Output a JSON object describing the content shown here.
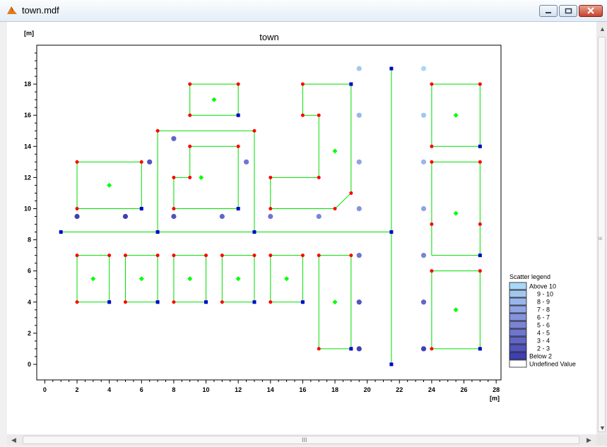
{
  "window": {
    "title": "town.mdf",
    "icon": "matlab-peak-icon",
    "controls": [
      "minimize-icon",
      "maximize-icon",
      "close-icon"
    ],
    "colors": {
      "close": "#c8402b",
      "titlebar": "#e4edf7"
    }
  },
  "plot": {
    "title": "town",
    "ylabel": "[m]",
    "xlabel": "[m]"
  },
  "scrollbars": {
    "h_grip": "III",
    "v_grip": "III"
  },
  "chart_data": {
    "type": "scatter",
    "title": "town",
    "xlabel": "[m]",
    "ylabel": "[m]",
    "xlim": [
      -0.5,
      28.3
    ],
    "ylim": [
      -1,
      20.5
    ],
    "xticks": [
      0,
      2,
      4,
      6,
      8,
      10,
      12,
      14,
      16,
      18,
      20,
      22,
      24,
      26,
      28
    ],
    "yticks": [
      0,
      2,
      4,
      6,
      8,
      10,
      12,
      14,
      16,
      18
    ],
    "grid": false,
    "colors": {
      "lines": "#00dd00",
      "red_nodes": "#ff0000",
      "blue_nodes": "#0000cc",
      "green_markers": "#00ff00"
    },
    "polylines": [
      [
        [
          2,
          10
        ],
        [
          2,
          13
        ],
        [
          6,
          13
        ],
        [
          6,
          10
        ],
        [
          2,
          10
        ]
      ],
      [
        [
          9,
          16
        ],
        [
          9,
          18
        ],
        [
          12,
          18
        ],
        [
          12,
          16
        ],
        [
          9,
          16
        ]
      ],
      [
        [
          7,
          8.5
        ],
        [
          7,
          15
        ],
        [
          13,
          15
        ],
        [
          13,
          8.5
        ]
      ],
      [
        [
          8,
          10
        ],
        [
          8,
          12
        ],
        [
          9,
          12
        ],
        [
          9,
          14
        ],
        [
          12,
          14
        ],
        [
          12,
          10
        ],
        [
          8,
          10
        ]
      ],
      [
        [
          16,
          16
        ],
        [
          16,
          18
        ],
        [
          19,
          18
        ],
        [
          19,
          11
        ],
        [
          18,
          10
        ],
        [
          14,
          10
        ],
        [
          14,
          12
        ],
        [
          17,
          12
        ],
        [
          17,
          16
        ],
        [
          16,
          16
        ]
      ],
      [
        [
          24,
          14
        ],
        [
          24,
          18
        ],
        [
          27,
          18
        ],
        [
          27,
          14
        ],
        [
          24,
          14
        ]
      ],
      [
        [
          24,
          7
        ],
        [
          24,
          13
        ],
        [
          27,
          13
        ],
        [
          27,
          7
        ],
        [
          24,
          7
        ]
      ],
      [
        [
          24,
          1
        ],
        [
          24,
          6
        ],
        [
          27,
          6
        ],
        [
          27,
          1
        ],
        [
          24,
          1
        ]
      ],
      [
        [
          1,
          8.5
        ],
        [
          21.5,
          8.5
        ]
      ],
      [
        [
          21.5,
          0
        ],
        [
          21.5,
          19
        ]
      ],
      [
        [
          2,
          4
        ],
        [
          2,
          7
        ],
        [
          4,
          7
        ],
        [
          4,
          4
        ],
        [
          2,
          4
        ]
      ],
      [
        [
          5,
          4
        ],
        [
          5,
          7
        ],
        [
          7,
          7
        ],
        [
          7,
          4
        ],
        [
          5,
          4
        ]
      ],
      [
        [
          8,
          4
        ],
        [
          8,
          7
        ],
        [
          10,
          7
        ],
        [
          10,
          4
        ],
        [
          8,
          4
        ]
      ],
      [
        [
          11,
          4
        ],
        [
          11,
          7
        ],
        [
          13,
          7
        ],
        [
          13,
          4
        ],
        [
          11,
          4
        ]
      ],
      [
        [
          14,
          4
        ],
        [
          14,
          7
        ],
        [
          16,
          7
        ],
        [
          16,
          4
        ],
        [
          14,
          4
        ]
      ],
      [
        [
          17,
          1
        ],
        [
          17,
          7
        ],
        [
          19,
          7
        ],
        [
          19,
          1
        ],
        [
          17,
          1
        ]
      ]
    ],
    "red_nodes": [
      [
        2,
        10
      ],
      [
        2,
        13
      ],
      [
        6,
        13
      ],
      [
        9,
        18
      ],
      [
        12,
        18
      ],
      [
        9,
        16
      ],
      [
        7,
        15
      ],
      [
        13,
        15
      ],
      [
        8,
        10
      ],
      [
        8,
        12
      ],
      [
        9,
        12
      ],
      [
        9,
        14
      ],
      [
        12,
        14
      ],
      [
        16,
        18
      ],
      [
        16,
        16
      ],
      [
        17,
        16
      ],
      [
        17,
        12
      ],
      [
        14,
        12
      ],
      [
        14,
        10
      ],
      [
        18,
        10
      ],
      [
        19,
        11
      ],
      [
        24,
        18
      ],
      [
        27,
        18
      ],
      [
        24,
        14
      ],
      [
        24,
        13
      ],
      [
        27,
        13
      ],
      [
        24,
        9
      ],
      [
        27,
        9
      ],
      [
        24,
        6
      ],
      [
        27,
        6
      ],
      [
        24,
        1
      ],
      [
        2,
        7
      ],
      [
        4,
        7
      ],
      [
        2,
        4
      ],
      [
        5,
        7
      ],
      [
        7,
        7
      ],
      [
        5,
        4
      ],
      [
        8,
        7
      ],
      [
        10,
        7
      ],
      [
        8,
        4
      ],
      [
        11,
        7
      ],
      [
        13,
        7
      ],
      [
        11,
        4
      ],
      [
        14,
        7
      ],
      [
        16,
        7
      ],
      [
        14,
        4
      ],
      [
        17,
        7
      ],
      [
        19,
        7
      ],
      [
        17,
        1
      ]
    ],
    "blue_nodes": [
      [
        1,
        8.5
      ],
      [
        7,
        8.5
      ],
      [
        13,
        8.5
      ],
      [
        21.5,
        8.5
      ],
      [
        21.5,
        0
      ],
      [
        21.5,
        19
      ],
      [
        6,
        10
      ],
      [
        12,
        16
      ],
      [
        12,
        10
      ],
      [
        19,
        18
      ],
      [
        27,
        14
      ],
      [
        27,
        7
      ],
      [
        27,
        1
      ],
      [
        4,
        4
      ],
      [
        7,
        4
      ],
      [
        10,
        4
      ],
      [
        13,
        4
      ],
      [
        16,
        4
      ],
      [
        19,
        1
      ]
    ],
    "green_markers": [
      [
        4,
        11.5
      ],
      [
        10.5,
        17
      ],
      [
        9.7,
        12
      ],
      [
        18,
        13.7
      ],
      [
        25.5,
        16
      ],
      [
        25.5,
        9.7
      ],
      [
        25.5,
        3.5
      ],
      [
        3,
        5.5
      ],
      [
        6,
        5.5
      ],
      [
        9,
        5.5
      ],
      [
        12,
        5.5
      ],
      [
        15,
        5.5
      ],
      [
        18,
        4
      ]
    ],
    "scatter_points": [
      {
        "x": 2,
        "y": 9.5,
        "class": 1
      },
      {
        "x": 5,
        "y": 9.5,
        "class": 1
      },
      {
        "x": 8,
        "y": 9.5,
        "class": 2
      },
      {
        "x": 11,
        "y": 9.5,
        "class": 3
      },
      {
        "x": 14,
        "y": 9.5,
        "class": 4
      },
      {
        "x": 17,
        "y": 9.5,
        "class": 5
      },
      {
        "x": 6.5,
        "y": 13,
        "class": 2
      },
      {
        "x": 8,
        "y": 14.5,
        "class": 3
      },
      {
        "x": 12.5,
        "y": 13,
        "class": 4
      },
      {
        "x": 19.5,
        "y": 19,
        "class": 9
      },
      {
        "x": 19.5,
        "y": 16,
        "class": 8
      },
      {
        "x": 19.5,
        "y": 13,
        "class": 7
      },
      {
        "x": 19.5,
        "y": 10,
        "class": 6
      },
      {
        "x": 19.5,
        "y": 7,
        "class": 4
      },
      {
        "x": 19.5,
        "y": 4,
        "class": 2
      },
      {
        "x": 19.5,
        "y": 1,
        "class": 1
      },
      {
        "x": 23.5,
        "y": 19,
        "class": 10
      },
      {
        "x": 23.5,
        "y": 16,
        "class": 9
      },
      {
        "x": 23.5,
        "y": 13,
        "class": 8
      },
      {
        "x": 23.5,
        "y": 10,
        "class": 7
      },
      {
        "x": 23.5,
        "y": 7,
        "class": 5
      },
      {
        "x": 23.5,
        "y": 4,
        "class": 3
      },
      {
        "x": 23.5,
        "y": 1,
        "class": 1
      }
    ],
    "legend": {
      "title": "Scatter legend",
      "placement": "right",
      "items": [
        {
          "label": "Above 10",
          "color": "#a8d8f8"
        },
        {
          "label": "9 - 10",
          "color": "#a2c8f2"
        },
        {
          "label": "8 -  9",
          "color": "#98b6ec"
        },
        {
          "label": "7 -  8",
          "color": "#8ea4e4"
        },
        {
          "label": "6 -  7",
          "color": "#8493dc"
        },
        {
          "label": "5 -  6",
          "color": "#7a84d6"
        },
        {
          "label": "4 -  5",
          "color": "#6e76ce"
        },
        {
          "label": "3 -  4",
          "color": "#6066c6"
        },
        {
          "label": "2 -  3",
          "color": "#5254be"
        },
        {
          "label": "Below  2",
          "color": "#4040b4"
        },
        {
          "label": "Undefined Value",
          "color": "#ffffff"
        }
      ]
    }
  }
}
